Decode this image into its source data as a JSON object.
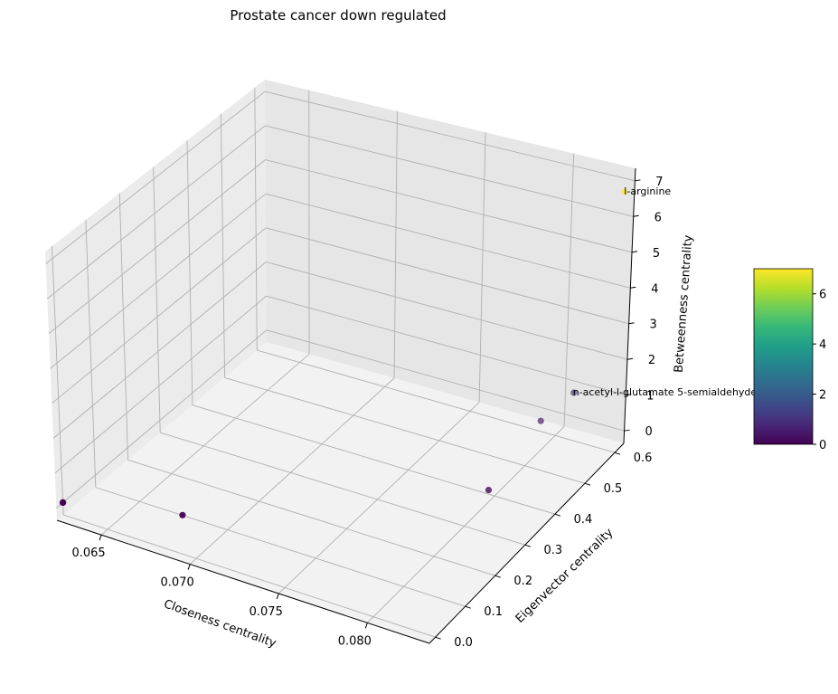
{
  "chart_data": {
    "type": "scatter",
    "projection": "3d",
    "title": "Prostate cancer down regulated",
    "xlabel": "Closeness centrality",
    "ylabel": "Eigenvector centrality",
    "zlabel": "Betweenness centrality",
    "xticks": [
      "0.065",
      "0.070",
      "0.075",
      "0.080"
    ],
    "yticks": [
      "0.0",
      "0.1",
      "0.2",
      "0.3",
      "0.4",
      "0.5",
      "0.6"
    ],
    "zticks": [
      "0",
      "1",
      "2",
      "3",
      "4",
      "5",
      "6",
      "7"
    ],
    "xlim": [
      0.0625,
      0.0835
    ],
    "ylim": [
      -0.02,
      0.63
    ],
    "zlim": [
      -0.35,
      7.35
    ],
    "grid": true,
    "colormap": "viridis",
    "color_by": "Betweenness centrality",
    "colorbar": {
      "ticks": [
        "0",
        "2",
        "4",
        "6"
      ],
      "range": [
        0,
        7
      ]
    },
    "points": [
      {
        "x": 0.0625,
        "y": 0.0,
        "z": 0,
        "label": ""
      },
      {
        "x": 0.0625,
        "y": 0.0,
        "z": 0,
        "label": ""
      },
      {
        "x": 0.068,
        "y": 0.07,
        "z": 0,
        "label": ""
      },
      {
        "x": 0.08,
        "y": 0.38,
        "z": 0,
        "label": ""
      },
      {
        "x": 0.08,
        "y": 0.55,
        "z": 0.5,
        "label": ""
      },
      {
        "x": 0.081,
        "y": 0.6,
        "z": 1,
        "label": "n-acetyl-l-glutamate 5-semialdehyde"
      },
      {
        "x": 0.0835,
        "y": 0.6,
        "z": 7,
        "label": "l-arginine"
      }
    ]
  }
}
